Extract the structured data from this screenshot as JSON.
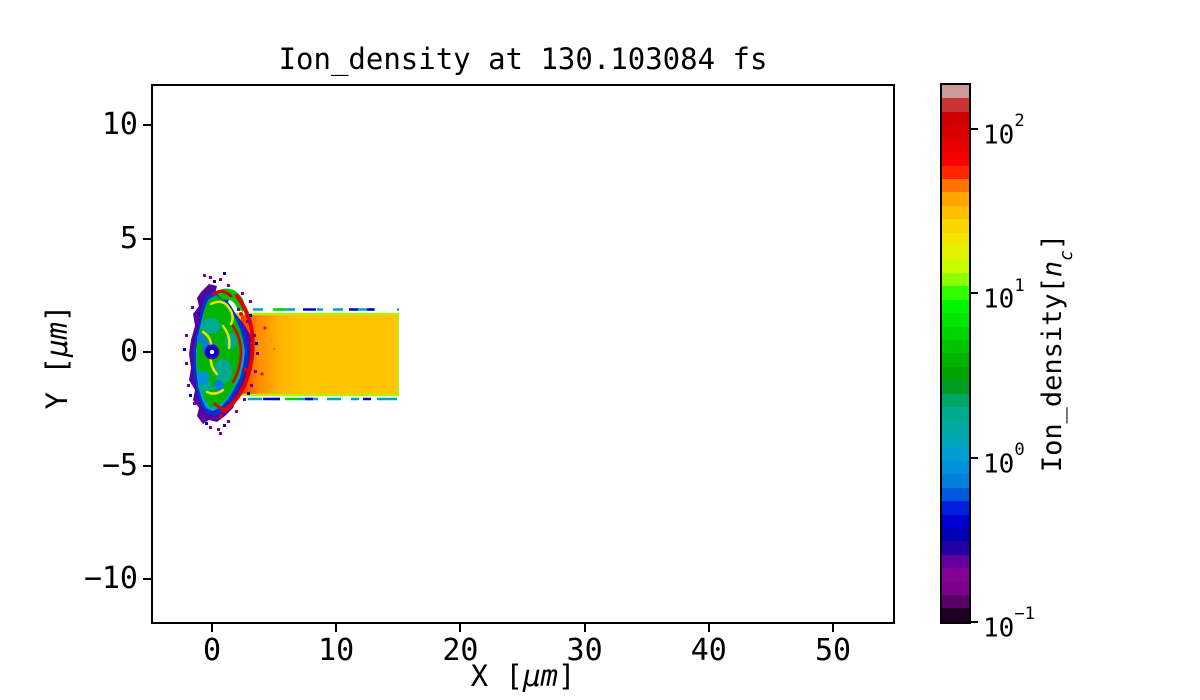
{
  "chart_data": {
    "type": "heatmap",
    "title": "Ion_density at 130.103084 fs",
    "time_fs": 130.103084,
    "xlabel": {
      "pre": "X [",
      "unit": "μm",
      "post": "]"
    },
    "ylabel": {
      "pre": "Y [",
      "unit": "μm",
      "post": "]"
    },
    "x_axis": {
      "range_um": [
        -4.8,
        55.0
      ],
      "ticks": [
        {
          "label": "0",
          "value": 0
        },
        {
          "label": "10",
          "value": 10
        },
        {
          "label": "20",
          "value": 20
        },
        {
          "label": "30",
          "value": 30
        },
        {
          "label": "40",
          "value": 40
        },
        {
          "label": "50",
          "value": 50
        }
      ]
    },
    "y_axis": {
      "range_um": [
        -11.9,
        11.8
      ],
      "ticks": [
        {
          "label": "10",
          "value": 10
        },
        {
          "label": "5",
          "value": 5
        },
        {
          "label": "0",
          "value": 0
        },
        {
          "label": "−5",
          "value": -5
        },
        {
          "label": "−10",
          "value": -10
        }
      ]
    },
    "colorbar": {
      "label": {
        "pre": "Ion_density[",
        "var": "n",
        "sub": "c",
        "post": "]"
      },
      "scale": "log10",
      "range_nc": [
        0.1,
        186
      ],
      "ticks": [
        {
          "base": "10",
          "exp": "2",
          "value": 100
        },
        {
          "base": "10",
          "exp": "1",
          "value": 10
        },
        {
          "base": "10",
          "exp": "0",
          "value": 1
        },
        {
          "base": "10",
          "exp": "−1",
          "value": 0.1
        }
      ],
      "colormap": "nipy_spectral",
      "n_levels": 40,
      "colors_bottom_to_top": [
        "#1e0022",
        "#590066",
        "#7b008c",
        "#840095",
        "#66009d",
        "#2200a6",
        "#0000b7",
        "#0000d0",
        "#001edd",
        "#0059dd",
        "#0080dd",
        "#0091dd",
        "#009dd0",
        "#00a6b7",
        "#00aaa2",
        "#00aa91",
        "#00a666",
        "#009d22",
        "#00a200",
        "#00b300",
        "#00c400",
        "#00d500",
        "#00e600",
        "#00f600",
        "#2fff00",
        "#8cff00",
        "#c8fb00",
        "#e1f200",
        "#f2e600",
        "#fbd500",
        "#ffbf00",
        "#ffa600",
        "#ff7300",
        "#ff2600",
        "#f60000",
        "#e60000",
        "#d90000",
        "#d00000",
        "#cc3333",
        "#cc9999"
      ]
    },
    "features": {
      "target_slab": {
        "x_um": [
          0.5,
          15.0
        ],
        "y_um": [
          -1.9,
          1.8
        ],
        "density_nc": 30,
        "color": "#ffc400"
      },
      "front_plasma": {
        "x_um": [
          -1.7,
          3.0
        ],
        "y_um": [
          -3.2,
          3.0
        ],
        "density_nc_range": [
          0.1,
          150
        ],
        "description": "turbulent plasma cloud at front surface: green/teal body, cyan-blue patches, yellow filaments, red density-spike crescent, blue-purple low-density fringe"
      },
      "background_density_nc": 0
    }
  }
}
